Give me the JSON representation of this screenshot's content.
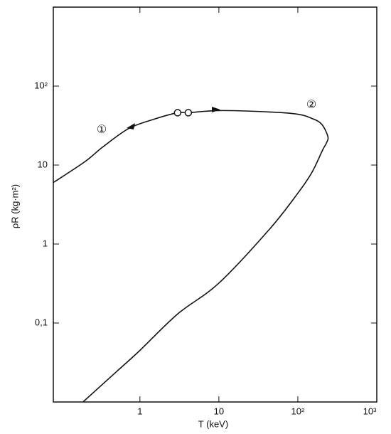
{
  "chart_data": {
    "type": "line",
    "xlabel": "T (keV)",
    "ylabel": "ρR (kg·m²)",
    "xscale": "log",
    "yscale": "log",
    "xlim": [
      0.08,
      1000
    ],
    "ylim": [
      0.01,
      1000
    ],
    "xticks": [
      1,
      10,
      {
        "value": 100,
        "label": "10²"
      },
      {
        "value": 1000,
        "label": "10³"
      }
    ],
    "yticks": [
      {
        "value": 0.1,
        "label": "0,1"
      },
      1,
      10,
      {
        "value": 100,
        "label": "10²"
      }
    ],
    "series": [
      {
        "color": "#111111",
        "x": [
          0.08,
          0.2,
          0.34,
          0.72,
          1.5,
          3.0,
          4.1,
          10,
          44,
          100,
          150,
          200,
          240,
          230,
          206,
          150,
          100,
          44,
          10,
          3,
          1,
          0.5,
          0.19
        ],
        "values": [
          6,
          11,
          17,
          29,
          38,
          46,
          46,
          49,
          47,
          44,
          39,
          33,
          23,
          19,
          15.5,
          8,
          4.4,
          1.55,
          0.32,
          0.13,
          0.045,
          0.024,
          0.01
        ]
      },
      {
        "type": "scatter",
        "color": "#111111",
        "x": [
          3.0,
          4.1
        ],
        "values": [
          46,
          46
        ]
      }
    ],
    "annotations": [
      "①",
      "②"
    ]
  }
}
